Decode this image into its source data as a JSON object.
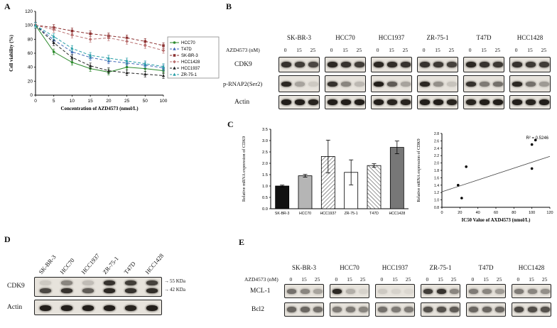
{
  "panels": {
    "a": "A",
    "b": "B",
    "c": "C",
    "d": "D",
    "e": "E"
  },
  "cell_lines": [
    "SK-BR-3",
    "HCC70",
    "HCC1937",
    "ZR-75-1",
    "T47D",
    "HCC1428"
  ],
  "doses": [
    "0",
    "15",
    "25"
  ],
  "chart_data": [
    {
      "id": "viability-curves",
      "type": "line",
      "xlabel": "Concentration of AZD4573 (nmol/L)",
      "ylabel": "Cell viability (%)",
      "x_ticks": [
        "0",
        "5",
        "10",
        "15",
        "20",
        "25",
        "50",
        "100"
      ],
      "ylim": [
        0,
        120
      ],
      "y_ticks": [
        0,
        20,
        40,
        60,
        80,
        100,
        120
      ],
      "error": 4,
      "legend_position": "right",
      "series": [
        {
          "name": "HCC70",
          "color": "#2e8b2e",
          "dash": "solid",
          "marker": "circle",
          "values": [
            100,
            62,
            47,
            38,
            33,
            40,
            38,
            35
          ]
        },
        {
          "name": "T47D",
          "color": "#4169b8",
          "dash": "dashed",
          "marker": "triangle",
          "values": [
            100,
            79,
            62,
            54,
            49,
            46,
            43,
            39
          ]
        },
        {
          "name": "SK-BR-3",
          "color": "#8b3030",
          "dash": "dashed",
          "marker": "square",
          "values": [
            100,
            97,
            92,
            88,
            85,
            82,
            77,
            71
          ]
        },
        {
          "name": "HCC1428",
          "color": "#b97070",
          "dash": "dashed",
          "marker": "diamond",
          "values": [
            100,
            94,
            86,
            80,
            82,
            77,
            71,
            64
          ]
        },
        {
          "name": "HCC1937",
          "color": "#222222",
          "dash": "dashed",
          "marker": "triangle",
          "values": [
            100,
            75,
            54,
            42,
            35,
            32,
            30,
            28
          ]
        },
        {
          "name": "ZR-75-1",
          "color": "#2aa0a8",
          "dash": "dashed",
          "marker": "triangle",
          "values": [
            100,
            84,
            67,
            57,
            53,
            49,
            45,
            41
          ]
        }
      ]
    },
    {
      "id": "cdk9-mrna-bars",
      "type": "bar",
      "ylabel": "Relative mRNA expression of CDK9",
      "categories": [
        "SK-BR-3",
        "HCC70",
        "HCC1937",
        "ZR-75-1",
        "T47D",
        "HCC1428"
      ],
      "values": [
        1.0,
        1.45,
        2.3,
        1.6,
        1.9,
        2.7
      ],
      "errors": [
        0.04,
        0.06,
        0.72,
        0.55,
        0.08,
        0.28
      ],
      "ylim": [
        0,
        3.5
      ],
      "y_ticks": [
        0,
        0.5,
        1,
        1.5,
        2,
        2.5,
        3,
        3.5
      ],
      "fills": [
        "black",
        "lightgray",
        "hatch-diag",
        "white",
        "hatch-diag2",
        "darkgray"
      ]
    },
    {
      "id": "ic50-vs-mrna",
      "type": "scatter",
      "xlabel": "IC50 Value of AXD4573 (nmol/L)",
      "ylabel": "Relative mRNA expression of CDK9",
      "annotation": "R² = 0.5246",
      "xlim": [
        0,
        120
      ],
      "x_ticks": [
        0,
        20,
        40,
        60,
        80,
        100,
        120
      ],
      "ylim": [
        0.8,
        2.8
      ],
      "y_ticks": [
        0.8,
        1.0,
        1.2,
        1.4,
        1.6,
        1.8,
        2.0,
        2.2,
        2.4,
        2.6,
        2.8
      ],
      "points": [
        [
          18,
          1.4
        ],
        [
          22,
          1.05
        ],
        [
          27,
          1.9
        ],
        [
          100,
          1.85
        ],
        [
          100,
          2.5
        ],
        [
          104,
          2.62
        ]
      ],
      "trendline": {
        "x1": 0,
        "y1": 1.22,
        "x2": 120,
        "y2": 2.18
      }
    }
  ],
  "panel_b": {
    "dose_label": "AZD4573 (nM)",
    "row_labels": [
      "CDK9",
      "p-RNAP2(Ser2)",
      "Actin"
    ],
    "intensities": [
      [
        [
          0.85,
          0.8,
          0.75
        ],
        [
          0.9,
          0.85,
          0.8
        ],
        [
          0.9,
          0.88,
          0.85
        ],
        [
          0.85,
          0.82,
          0.78
        ],
        [
          0.9,
          0.85,
          0.82
        ],
        [
          0.85,
          0.82,
          0.8
        ]
      ],
      [
        [
          0.9,
          0.3,
          0.12
        ],
        [
          0.85,
          0.45,
          0.2
        ],
        [
          0.95,
          0.65,
          0.3
        ],
        [
          0.9,
          0.4,
          0.15
        ],
        [
          0.85,
          0.5,
          0.55
        ],
        [
          0.9,
          0.55,
          0.35
        ]
      ],
      [
        [
          0.95,
          0.95,
          0.92
        ],
        [
          0.95,
          0.95,
          0.95
        ],
        [
          0.95,
          0.92,
          0.92
        ],
        [
          0.95,
          0.95,
          0.92
        ],
        [
          0.92,
          0.95,
          0.95
        ],
        [
          0.95,
          0.92,
          0.95
        ]
      ]
    ]
  },
  "panel_d": {
    "row_labels": [
      "CDK9",
      "Actin"
    ],
    "arrow": "→",
    "markers": [
      "55 KDa",
      "42 KDa"
    ],
    "bands": {
      "cdk9_55": [
        0.12,
        0.45,
        0.18,
        0.85,
        0.8,
        0.78
      ],
      "cdk9_42": [
        0.75,
        0.85,
        0.65,
        0.9,
        0.85,
        0.88
      ],
      "actin": [
        0.95,
        0.95,
        0.95,
        0.95,
        0.92,
        0.95
      ]
    }
  },
  "panel_e": {
    "dose_label": "AZD4573 (nM)",
    "row_labels": [
      "MCL-1",
      "Bcl2"
    ],
    "intensities": [
      [
        [
          0.55,
          0.45,
          0.3
        ],
        [
          0.9,
          0.25,
          0.08
        ],
        [
          0.12,
          0.08,
          0.05
        ],
        [
          0.8,
          0.85,
          0.45
        ],
        [
          0.5,
          0.45,
          0.35
        ],
        [
          0.5,
          0.45,
          0.4
        ]
      ],
      [
        [
          0.6,
          0.6,
          0.55
        ],
        [
          0.5,
          0.5,
          0.45
        ],
        [
          0.55,
          0.5,
          0.5
        ],
        [
          0.7,
          0.7,
          0.65
        ],
        [
          0.6,
          0.6,
          0.6
        ],
        [
          0.75,
          0.72,
          0.7
        ]
      ]
    ]
  }
}
